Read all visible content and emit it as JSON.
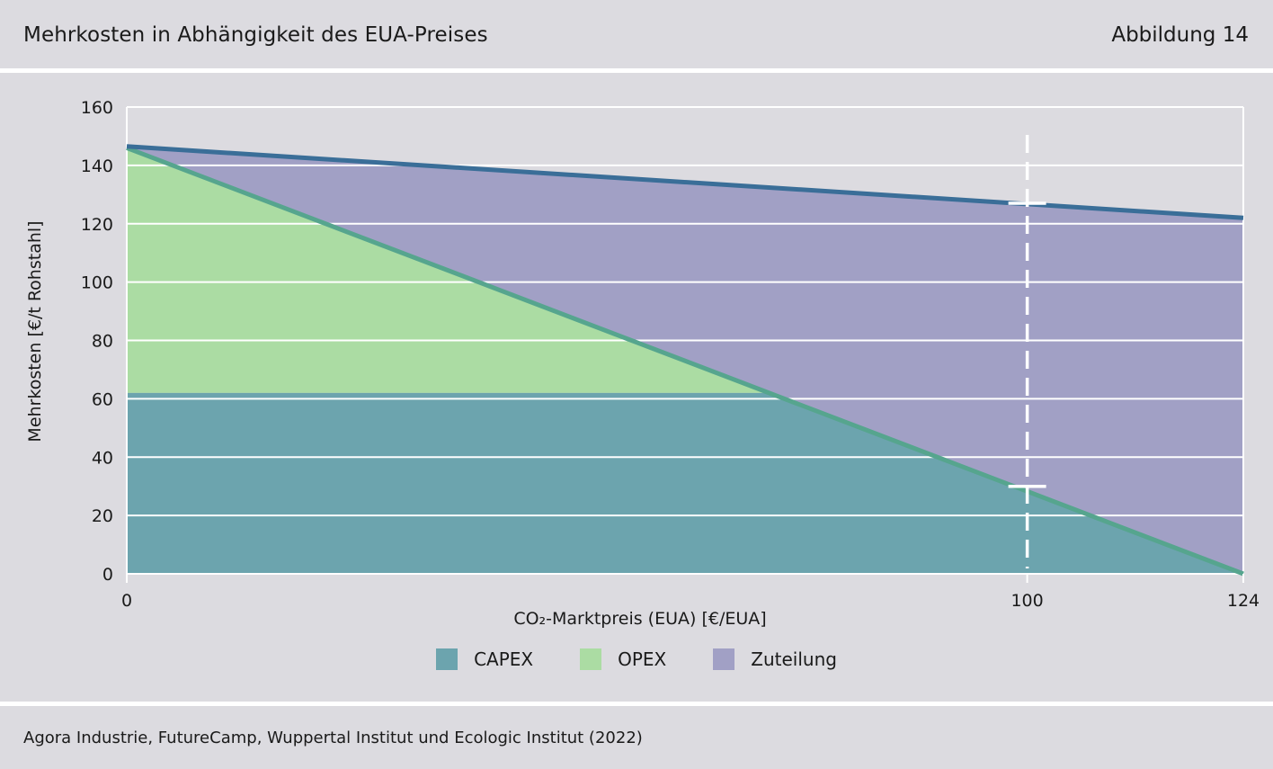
{
  "header": {
    "title": "Mehrkosten in Abhängigkeit des EUA-Preises",
    "figure_label": "Abbildung 14"
  },
  "source": "Agora Industrie, FutureCamp, Wuppertal Institut und Ecologic Institut (2022)",
  "colors": {
    "capex": "#6ca4ae",
    "opex": "#abdca3",
    "zuteilung": "#a1a0c5",
    "total_line": "#3a6e98",
    "divider_line": "#56a58e",
    "background": "#dcdbe0"
  },
  "chart_data": {
    "type": "area",
    "ylabel": "Mehrkosten [€/t Rohstahl]",
    "xlabel": "CO₂-Marktpreis (EUA) [€/EUA]",
    "ylim": [
      0,
      160
    ],
    "xlim": [
      0,
      124
    ],
    "yticks": [
      "0",
      "20",
      "40",
      "60",
      "80",
      "100",
      "120",
      "140",
      "160"
    ],
    "xticks": [
      {
        "value": 0,
        "label": "0"
      },
      {
        "value": 100,
        "label": "100"
      },
      {
        "value": 124,
        "label": "124"
      }
    ],
    "grid": "horizontal",
    "legend_position": "bottom",
    "series": [
      {
        "name": "CAPEX",
        "x": [
          0,
          124
        ],
        "y": [
          62,
          62
        ]
      },
      {
        "name": "OPEX",
        "x": [
          0,
          124
        ],
        "y": [
          146,
          0
        ]
      },
      {
        "name": "Zuteilung",
        "x": [
          0,
          124
        ],
        "y": [
          146.5,
          122
        ]
      }
    ],
    "annotations": [
      {
        "type": "dashed-vertical",
        "x": 100,
        "marks_y": [
          127,
          30
        ]
      }
    ]
  }
}
